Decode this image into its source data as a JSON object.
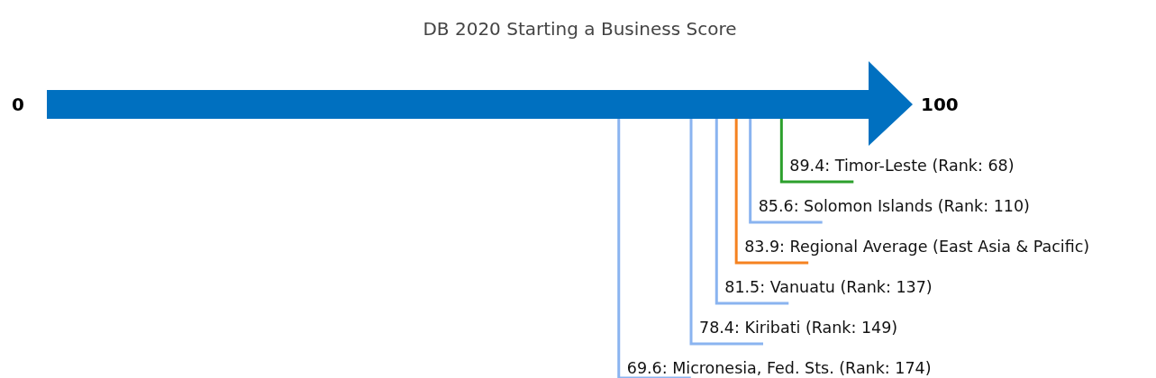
{
  "chart_data": {
    "type": "other",
    "title": "DB 2020 Starting a Business Score",
    "values": [
      89.4,
      85.6,
      83.9,
      81.5,
      78.4,
      69.6
    ],
    "value_labels": [
      "89.4: Timor-Leste (Rank: 68)",
      "85.6: Solomon Islands (Rank: 110)",
      "83.9: Regional Average (East Asia & Pacific)",
      "81.5: Vanuatu (Rank: 137)",
      "78.4: Kiribati (Rank: 149)",
      "69.6: Micronesia, Fed. Sts. (Rank: 174)"
    ],
    "colors": [
      "#2ca02c",
      "#8ab4f0",
      "#f58220",
      "#8ab4f0",
      "#8ab4f0",
      "#8ab4f0"
    ],
    "annotations": [
      "0",
      "100"
    ]
  }
}
